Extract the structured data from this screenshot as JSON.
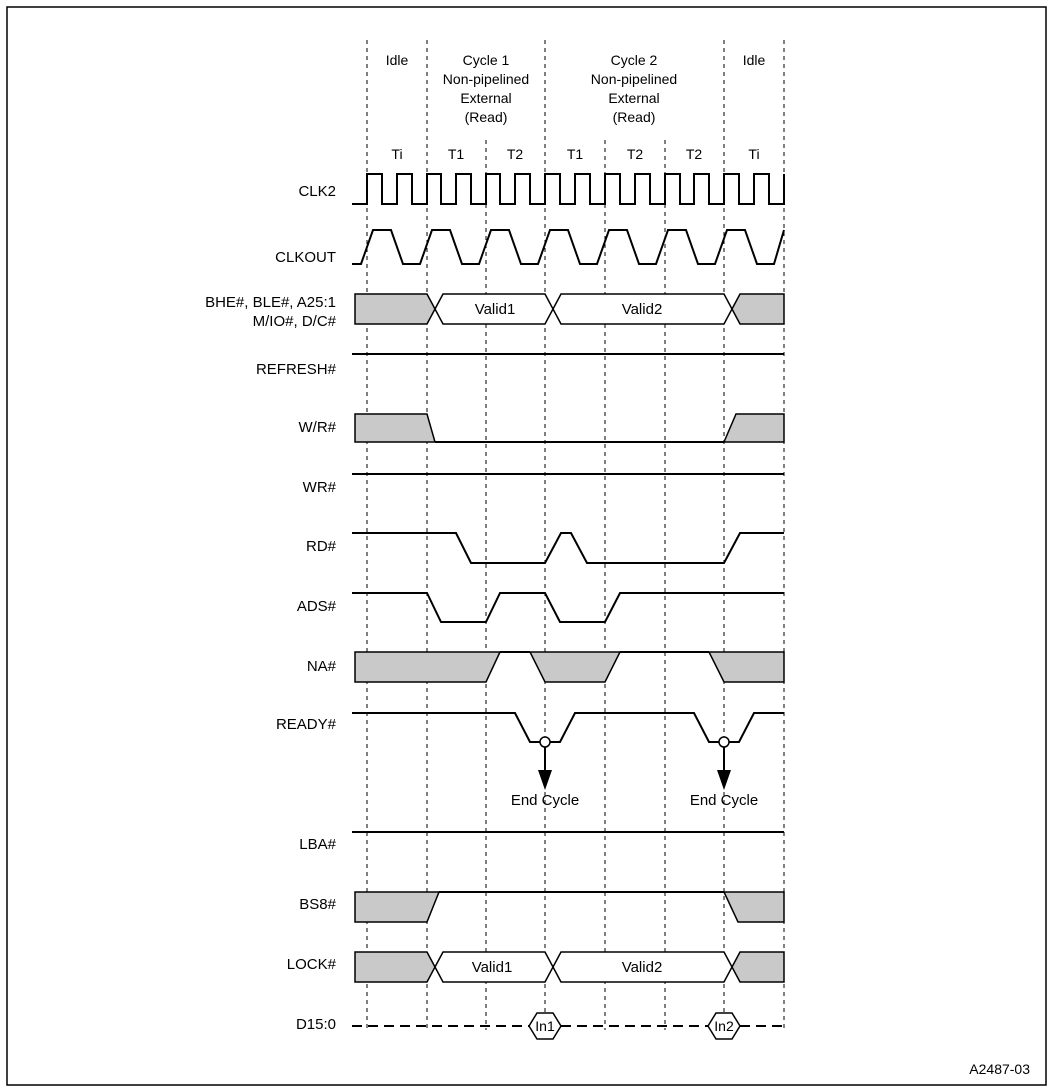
{
  "phases": [
    "Idle",
    "Cycle 1",
    "Non-pipelined",
    "External",
    "(Read)",
    "Cycle 2",
    "Non-pipelined",
    "External",
    "(Read)",
    "Idle"
  ],
  "states": [
    "Ti",
    "T1",
    "T2",
    "T1",
    "T2",
    "T2",
    "Ti"
  ],
  "signals": {
    "clk2": "CLK2",
    "clkout": "CLKOUT",
    "addr1": "BHE#, BLE#, A25:1",
    "addr2": "M/IO#, D/C#",
    "refresh": "REFRESH#",
    "wr_rd": "W/R#",
    "wr": "WR#",
    "rd": "RD#",
    "ads": "ADS#",
    "na": "NA#",
    "ready": "READY#",
    "lba": "LBA#",
    "bs8": "BS8#",
    "lock": "LOCK#",
    "data": "D15:0"
  },
  "bus_values": {
    "addr_valid1": "Valid1",
    "addr_valid2": "Valid2",
    "lock_valid1": "Valid1",
    "lock_valid2": "Valid2",
    "data_in1": "In1",
    "data_in2": "In2"
  },
  "end_cycle": [
    "End Cycle",
    "End Cycle"
  ],
  "figure_id": "A2487-03"
}
